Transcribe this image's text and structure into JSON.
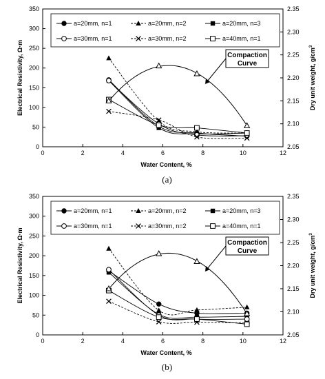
{
  "chart_data": [
    {
      "type": "line",
      "caption": "(a)",
      "xlabel": "Water Content, %",
      "ylabel": "Electrical Resistivity, Ω·m",
      "y2label_prefix": "Dry unit weight, g/cm",
      "y2label_sup": "3",
      "xlim": [
        0,
        12
      ],
      "ylim": [
        0,
        350
      ],
      "y2lim": [
        2.05,
        2.35
      ],
      "xticks": [
        "0",
        "2",
        "4",
        "6",
        "8",
        "10",
        "12"
      ],
      "yticks": [
        "0",
        "50",
        "100",
        "150",
        "200",
        "250",
        "300",
        "350"
      ],
      "y2ticks": [
        "2.05",
        "2.10",
        "2.15",
        "2.20",
        "2.25",
        "2.30",
        "2.35"
      ],
      "grid": false,
      "legend_position": "top",
      "annotation": {
        "line1": "Compaction",
        "line2": "Curve"
      },
      "series": [
        {
          "name": "a=20mm, n=1",
          "marker": "filled-circle",
          "dash": "solid",
          "x": [
            3.3,
            5.8,
            7.7,
            10.2
          ],
          "y": [
            170,
            52,
            35,
            27
          ]
        },
        {
          "name": "a=20mm, n=2",
          "marker": "filled-triangle",
          "dash": "dashed",
          "x": [
            3.3,
            5.8,
            7.7,
            10.2
          ],
          "y": [
            225,
            65,
            38,
            35
          ]
        },
        {
          "name": "a=20mm, n=3",
          "marker": "filled-square",
          "dash": "solid",
          "x": [
            3.3,
            5.8,
            7.7,
            10.2
          ],
          "y": [
            168,
            48,
            33,
            35
          ]
        },
        {
          "name": "a=30mm, n=1",
          "marker": "open-circle",
          "dash": "solid",
          "x": [
            3.3,
            5.8,
            7.7,
            10.2
          ],
          "y": [
            168,
            58,
            30,
            28
          ]
        },
        {
          "name": "a=30mm, n=2",
          "marker": "x",
          "dash": "dashed",
          "x": [
            3.3,
            5.8,
            7.7,
            10.2
          ],
          "y": [
            90,
            68,
            25,
            22
          ]
        },
        {
          "name": "a=40mm, n=1",
          "marker": "open-square",
          "dash": "solid",
          "x": [
            3.3,
            5.8,
            7.7,
            10.2
          ],
          "y": [
            120,
            55,
            48,
            35
          ]
        }
      ],
      "compaction": {
        "marker": "open-triangle",
        "x": [
          3.3,
          5.8,
          7.7,
          10.2
        ],
        "y2": [
          2.15,
          2.226,
          2.209,
          2.096
        ],
        "curve_peak_x": 6.3,
        "curve_peak_y2": 2.227
      }
    },
    {
      "type": "line",
      "caption": "(b)",
      "xlabel": "Water Content, %",
      "ylabel": "Electrical Resistivity, Ω·m",
      "y2label_prefix": "Dry unit weight, g/cm",
      "y2label_sup": "3",
      "xlim": [
        0,
        12
      ],
      "ylim": [
        0,
        350
      ],
      "y2lim": [
        2.05,
        2.35
      ],
      "xticks": [
        "0",
        "2",
        "4",
        "6",
        "8",
        "10",
        "12"
      ],
      "yticks": [
        "0",
        "50",
        "100",
        "150",
        "200",
        "250",
        "300",
        "350"
      ],
      "y2ticks": [
        "2.05",
        "2.10",
        "2.15",
        "2.20",
        "2.25",
        "2.30",
        "2.35"
      ],
      "grid": false,
      "legend_position": "top",
      "annotation": {
        "line1": "Compaction",
        "line2": "Curve"
      },
      "series": [
        {
          "name": "a=20mm, n=1",
          "marker": "filled-circle",
          "dash": "solid",
          "x": [
            3.3,
            5.8,
            7.7,
            10.2
          ],
          "y": [
            162,
            78,
            55,
            55
          ]
        },
        {
          "name": "a=20mm, n=2",
          "marker": "filled-triangle",
          "dash": "dashed",
          "x": [
            3.3,
            5.8,
            7.7,
            10.2
          ],
          "y": [
            218,
            62,
            63,
            70
          ]
        },
        {
          "name": "a=20mm, n=3",
          "marker": "filled-square",
          "dash": "solid",
          "x": [
            3.3,
            5.8,
            7.7,
            10.2
          ],
          "y": [
            158,
            52,
            45,
            47
          ]
        },
        {
          "name": "a=30mm, n=1",
          "marker": "open-circle",
          "dash": "solid",
          "x": [
            3.3,
            5.8,
            7.7,
            10.2
          ],
          "y": [
            165,
            50,
            40,
            40
          ]
        },
        {
          "name": "a=30mm, n=2",
          "marker": "x",
          "dash": "dashed",
          "x": [
            3.3,
            5.8,
            7.7,
            10.2
          ],
          "y": [
            85,
            33,
            32,
            30
          ]
        },
        {
          "name": "a=40mm, n=1",
          "marker": "open-square",
          "dash": "solid",
          "x": [
            3.3,
            5.8,
            7.7,
            10.2
          ],
          "y": [
            112,
            45,
            40,
            27
          ]
        }
      ],
      "compaction": {
        "marker": "open-triangle",
        "x": [
          3.3,
          5.8,
          7.7,
          10.2
        ],
        "y2": [
          2.15,
          2.226,
          2.209,
          2.096
        ],
        "curve_peak_x": 6.3,
        "curve_peak_y2": 2.227
      }
    }
  ]
}
